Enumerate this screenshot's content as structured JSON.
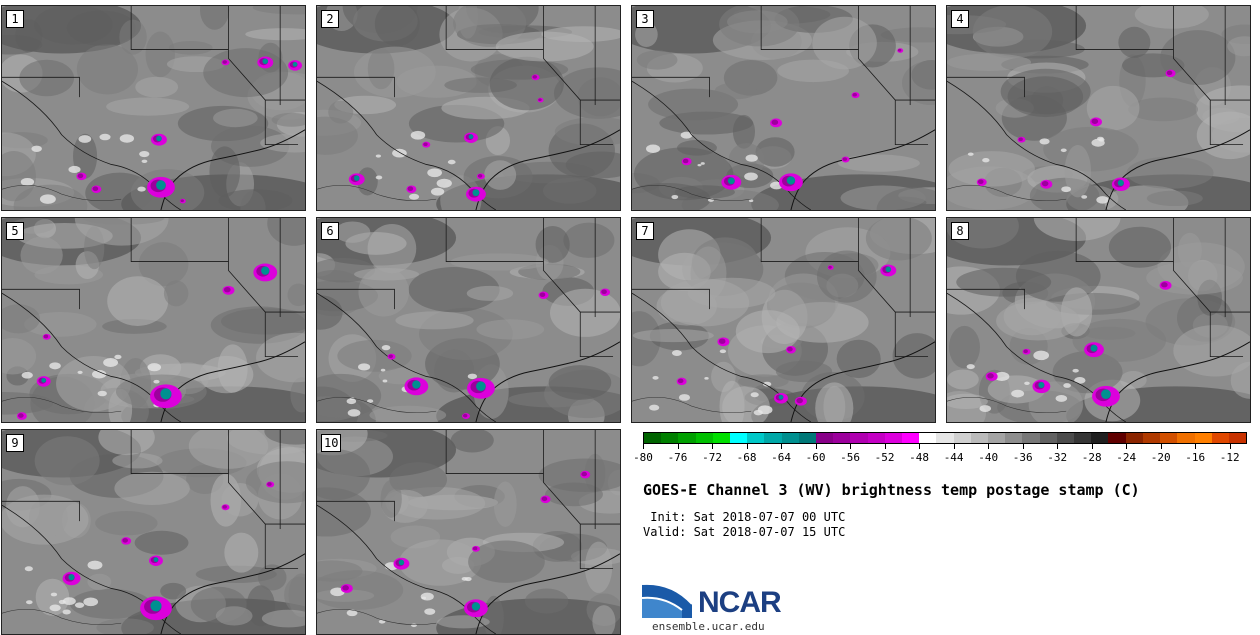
{
  "panels": [
    {
      "label": "1"
    },
    {
      "label": "2"
    },
    {
      "label": "3"
    },
    {
      "label": "4"
    },
    {
      "label": "5"
    },
    {
      "label": "6"
    },
    {
      "label": "7"
    },
    {
      "label": "8"
    },
    {
      "label": "9"
    },
    {
      "label": "10"
    }
  ],
  "colorbar": {
    "colors": [
      "#006400",
      "#008000",
      "#00a000",
      "#00c000",
      "#00e000",
      "#00ffff",
      "#00c8c8",
      "#00a8a8",
      "#009090",
      "#007878",
      "#880088",
      "#9c009c",
      "#b000b0",
      "#c400c4",
      "#dc00dc",
      "#ff00ff",
      "#ffffff",
      "#e6e6e6",
      "#d0d0d0",
      "#bababa",
      "#a4a4a4",
      "#8e8e8e",
      "#787878",
      "#626262",
      "#4c4c4c",
      "#363636",
      "#202020",
      "#600000",
      "#8b2500",
      "#b03a00",
      "#d25000",
      "#f07000",
      "#ff7f00",
      "#e04800",
      "#c83200"
    ],
    "ticks": [
      "-80",
      "-76",
      "-72",
      "-68",
      "-64",
      "-60",
      "-56",
      "-52",
      "-48",
      "-44",
      "-40",
      "-36",
      "-32",
      "-28",
      "-24",
      "-20",
      "-16",
      "-12"
    ],
    "min": -80,
    "max": -10
  },
  "title": "GOES-E Channel 3 (WV) brightness temp postage stamp (C)",
  "init": " Init: Sat 2018-07-07 00 UTC",
  "valid": "Valid: Sat 2018-07-07 15 UTC",
  "logo": {
    "text": "NCAR",
    "url": "ensemble.ucar.edu",
    "brand_color": "#1c3f82"
  }
}
